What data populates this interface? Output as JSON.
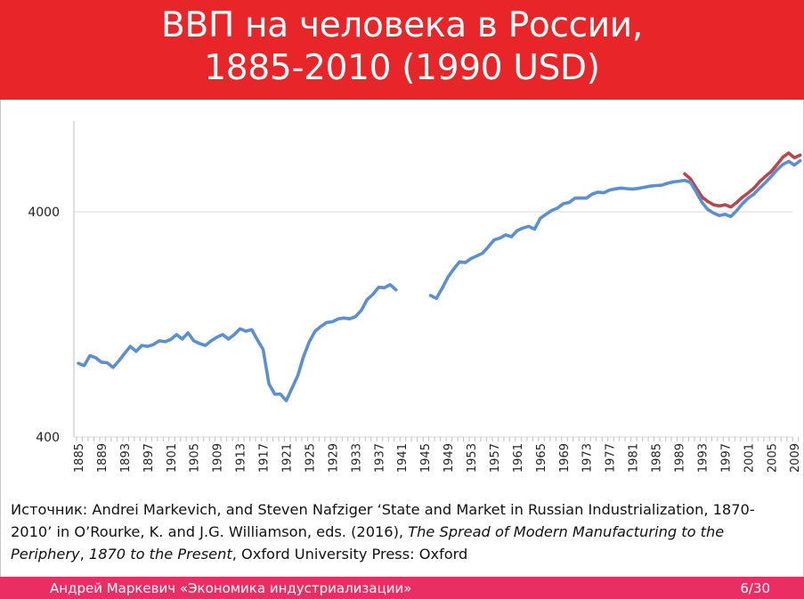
{
  "slide": {
    "title_line1": "ВВП на человека в России,",
    "title_line2": "1885-2010 (1990 USD)"
  },
  "source": {
    "prefix": "Источник: Andrei Markevich, and Steven Nafziger  ‘State and Market in Russian Industrialization, 1870-2010’ in O’Rourke, K. and J.G. Williamson, eds. (2016), ",
    "book_title_part1": "The Spread of Modern Manufacturing to the Periphery",
    "middle": ", ",
    "book_title_part2": "1870 to the Present",
    "suffix": ", Oxford University Press: Oxford"
  },
  "footer": {
    "author": "Андрей Маркевич «Экономика индустриализации»",
    "page": "6/30"
  },
  "colors": {
    "header_bg": "#e8262a",
    "footer_bg": "#ea2e64",
    "series_main": "#5b8fd0",
    "series_alt": "#b8474d",
    "grid": "#d9d9d9"
  },
  "chart_data": {
    "type": "line",
    "title": "",
    "xlabel": "",
    "ylabel": "",
    "yscale": "log",
    "ylim": [
      400,
      10400
    ],
    "xlim": [
      1885,
      2010
    ],
    "yticks": [
      400,
      4000
    ],
    "grid": "horizontal",
    "x_tick_labels": [
      "1885",
      "1889",
      "1893",
      "1897",
      "1901",
      "1905",
      "1909",
      "1913",
      "1917",
      "1921",
      "1925",
      "1929",
      "1933",
      "1937",
      "1941",
      "1945",
      "1949",
      "1953",
      "1957",
      "1961",
      "1965",
      "1969",
      "1973",
      "1977",
      "1981",
      "1985",
      "1989",
      "1993",
      "1997",
      "2001",
      "2005",
      "2009"
    ],
    "series": [
      {
        "segments": [
          {
            "x": [
              1885,
              1886,
              1887,
              1888,
              1889,
              1890,
              1891,
              1892,
              1893,
              1894,
              1895,
              1896,
              1897,
              1898,
              1899,
              1900,
              1901,
              1902,
              1903,
              1904,
              1905,
              1906,
              1907,
              1908,
              1909,
              1910,
              1911,
              1912,
              1913,
              1914,
              1915,
              1916,
              1917,
              1918,
              1919,
              1920,
              1921,
              1922,
              1923,
              1924,
              1925,
              1926,
              1927,
              1928,
              1929,
              1930,
              1931,
              1932,
              1933,
              1934,
              1935,
              1936,
              1937,
              1938,
              1939,
              1940
            ],
            "y": [
              850,
              830,
              920,
              900,
              860,
              855,
              815,
              870,
              940,
              1010,
              960,
              1020,
              1010,
              1030,
              1070,
              1060,
              1085,
              1140,
              1090,
              1160,
              1070,
              1040,
              1020,
              1070,
              1110,
              1140,
              1090,
              1140,
              1210,
              1180,
              1200,
              1080,
              980,
              690,
              620,
              620,
              580,
              660,
              750,
              910,
              1060,
              1180,
              1240,
              1290,
              1300,
              1340,
              1350,
              1340,
              1370,
              1460,
              1630,
              1720,
              1850,
              1840,
              1900,
              1800
            ]
          },
          {
            "x": [
              1946,
              1947,
              1948,
              1949,
              1950,
              1951,
              1952,
              1953,
              1954,
              1955,
              1956,
              1957,
              1958,
              1959,
              1960,
              1961,
              1962,
              1963,
              1964,
              1965,
              1966,
              1967,
              1968,
              1969,
              1970,
              1971,
              1972,
              1973,
              1974,
              1975,
              1976,
              1977,
              1978,
              1979,
              1980,
              1981,
              1982,
              1983,
              1984,
              1985,
              1986,
              1987,
              1988,
              1989,
              1990,
              1991,
              1992,
              1993,
              1994,
              1995,
              1996,
              1997,
              1998,
              1999,
              2000,
              2001,
              2002,
              2003,
              2004,
              2005,
              2006,
              2007,
              2008,
              2009,
              2010
            ],
            "y": [
              1700,
              1650,
              1830,
              2050,
              2230,
              2400,
              2380,
              2480,
              2550,
              2620,
              2800,
              3000,
              3060,
              3160,
              3100,
              3300,
              3390,
              3450,
              3350,
              3750,
              3900,
              4060,
              4160,
              4350,
              4400,
              4600,
              4610,
              4600,
              4800,
              4890,
              4860,
              5000,
              5060,
              5100,
              5070,
              5050,
              5080,
              5140,
              5200,
              5230,
              5250,
              5350,
              5430,
              5470,
              5520,
              5400,
              4900,
              4400,
              4100,
              3950,
              3850,
              3900,
              3810,
              4050,
              4350,
              4600,
              4800,
              5100,
              5400,
              5750,
              6150,
              6500,
              6700,
              6450,
              6750
            ]
          }
        ]
      },
      {
        "segments": [
          {
            "x": [
              1990,
              1991,
              1992,
              1993,
              1994,
              1995,
              1996,
              1997,
              1998,
              1999,
              2000,
              2001,
              2002,
              2003,
              2004,
              2005,
              2006,
              2007,
              2008,
              2009,
              2010
            ],
            "y": [
              5900,
              5600,
              5100,
              4650,
              4450,
              4300,
              4250,
              4300,
              4200,
              4400,
              4650,
              4850,
              5100,
              5450,
              5750,
              6050,
              6500,
              7000,
              7300,
              6950,
              7150
            ]
          }
        ]
      }
    ]
  }
}
